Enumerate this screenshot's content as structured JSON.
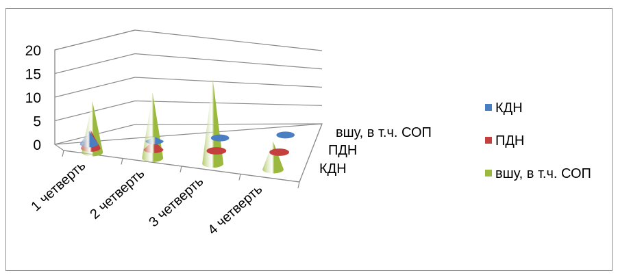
{
  "chart_data": {
    "type": "bar",
    "bar_shape": "cone-3d",
    "categories": [
      "1 четверть",
      "2 четверть",
      "3 четверть",
      "4 четверть"
    ],
    "series": [
      {
        "name": "КДН",
        "values": [
          3,
          1,
          0,
          0
        ],
        "color": "#4a7ec2"
      },
      {
        "name": "ПДН",
        "values": [
          4,
          2,
          0,
          0
        ],
        "color": "#c4403e"
      },
      {
        "name": "вшу, в т.ч. СОП",
        "values": [
          11,
          14,
          18,
          6
        ],
        "color": "#9ab93e"
      }
    ],
    "y_ticks": [
      "0",
      "5",
      "10",
      "15",
      "20"
    ],
    "ylim": [
      0,
      20
    ],
    "legend": "right",
    "grid": true
  }
}
